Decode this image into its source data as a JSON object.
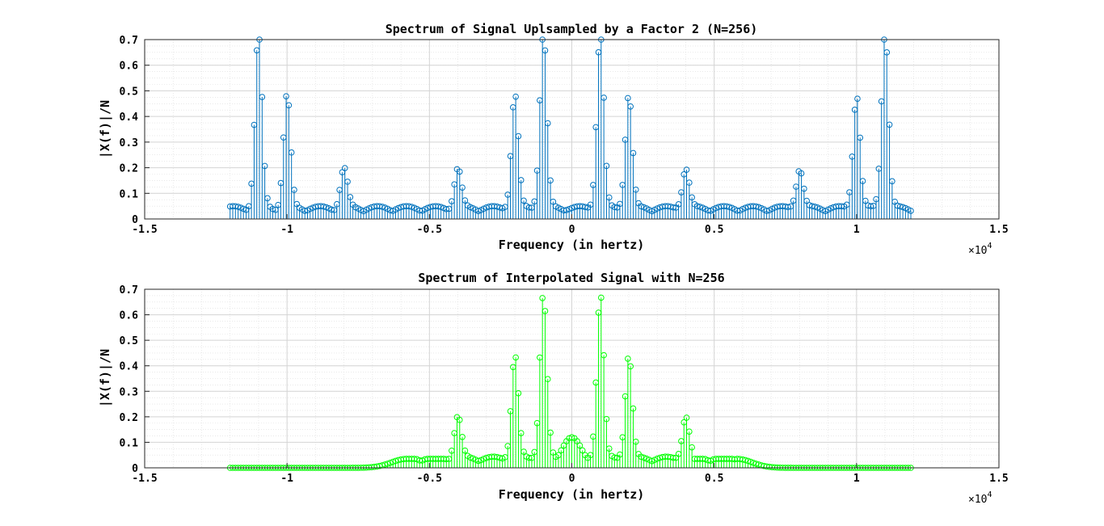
{
  "chart_data": [
    {
      "type": "stem",
      "title": "Spectrum of Signal Uplsampled by a Factor 2 (N=256)",
      "xlabel": "Frequency (in hertz)",
      "ylabel": "|X(f)|/N",
      "xlim": [
        -15000,
        15000
      ],
      "ylim": [
        0,
        0.7
      ],
      "xticks": [
        "-1.5",
        "-1",
        "-0.5",
        "0",
        "0.5",
        "1",
        "1.5"
      ],
      "xtick_values": [
        -1.5,
        -1,
        -0.5,
        0,
        0.5,
        1,
        1.5
      ],
      "yticks": [
        "0",
        "0.1",
        "0.2",
        "0.3",
        "0.4",
        "0.5",
        "0.6",
        "0.7"
      ],
      "ytick_values": [
        0,
        0.1,
        0.2,
        0.3,
        0.4,
        0.5,
        0.6,
        0.7
      ],
      "x_multiplier": "×10",
      "x_exponent": "4",
      "x_range": [
        -12000,
        11906.25
      ],
      "x_step": 93.75,
      "n_points": 256,
      "grid": true,
      "minor_grid": true,
      "color": "#0072BD",
      "peaks": [
        {
          "x": 1000,
          "y": 0.69
        },
        {
          "x": -1000,
          "y": 0.69
        },
        {
          "x": 11000,
          "y": 0.69
        },
        {
          "x": -11000,
          "y": 0.69
        },
        {
          "x": 2000,
          "y": 0.445
        },
        {
          "x": -2000,
          "y": 0.445
        },
        {
          "x": 10000,
          "y": 0.445
        },
        {
          "x": -10000,
          "y": 0.445
        },
        {
          "x": 4000,
          "y": 0.155
        },
        {
          "x": -4000,
          "y": 0.155
        },
        {
          "x": 8000,
          "y": 0.155
        },
        {
          "x": -8000,
          "y": 0.155
        }
      ],
      "floor": 0.04,
      "center_value": 0.04
    },
    {
      "type": "stem",
      "title": "Spectrum of Interpolated Signal with N=256",
      "xlabel": "Frequency (in hertz)",
      "ylabel": "|X(f)|/N",
      "xlim": [
        -15000,
        15000
      ],
      "ylim": [
        0,
        0.7
      ],
      "xticks": [
        "-1.5",
        "-1",
        "-0.5",
        "0",
        "0.5",
        "1",
        "1.5"
      ],
      "xtick_values": [
        -1.5,
        -1,
        -0.5,
        0,
        0.5,
        1,
        1.5
      ],
      "yticks": [
        "0",
        "0.1",
        "0.2",
        "0.3",
        "0.4",
        "0.5",
        "0.6",
        "0.7"
      ],
      "ytick_values": [
        0,
        0.1,
        0.2,
        0.3,
        0.4,
        0.5,
        0.6,
        0.7
      ],
      "x_multiplier": "×10",
      "x_exponent": "4",
      "x_range": [
        -12000,
        11906.25
      ],
      "x_step": 93.75,
      "n_points": 256,
      "grid": true,
      "minor_grid": true,
      "color": "#00FF00",
      "peaks": [
        {
          "x": 1000,
          "y": 0.648
        },
        {
          "x": -1000,
          "y": 0.648
        },
        {
          "x": 2000,
          "y": 0.405
        },
        {
          "x": -2000,
          "y": 0.405
        },
        {
          "x": 4000,
          "y": 0.165
        },
        {
          "x": -4000,
          "y": 0.165
        }
      ],
      "floor": 0.035,
      "lowpass_cutoff": 5800,
      "center_value": 0.12
    }
  ]
}
